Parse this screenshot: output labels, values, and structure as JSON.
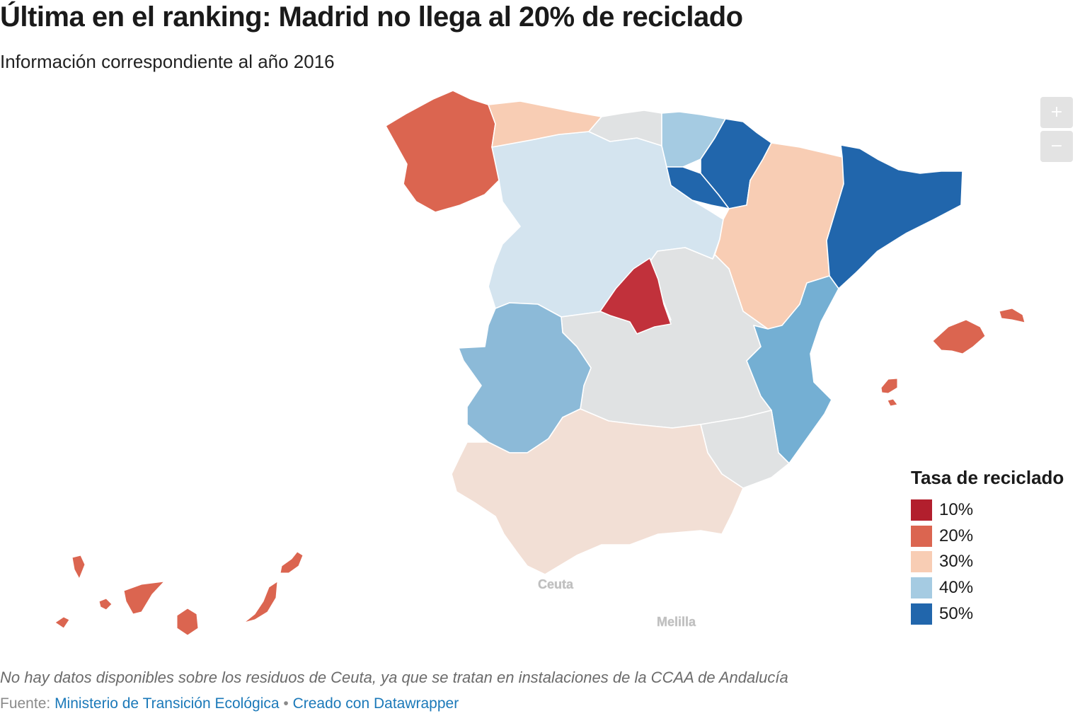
{
  "title": "Última en el ranking: Madrid no llega al 20% de reciclado",
  "subtitle": "Información correspondiente al año 2016",
  "zoom": {
    "in_label": "+",
    "out_label": "−"
  },
  "legend": {
    "title": "Tasa de reciclado",
    "items": [
      {
        "label": "10%",
        "color": "#b21f2d"
      },
      {
        "label": "20%",
        "color": "#db6550"
      },
      {
        "label": "30%",
        "color": "#f8cdb4"
      },
      {
        "label": "40%",
        "color": "#a5cbe2"
      },
      {
        "label": "50%",
        "color": "#2166ac"
      }
    ]
  },
  "map": {
    "no_data_color": "#e0e2e3",
    "regions": [
      {
        "name": "Galicia",
        "color": "#db6550"
      },
      {
        "name": "Asturias",
        "color": "#f8cdb4"
      },
      {
        "name": "Cantabria",
        "color": "#e0e2e3"
      },
      {
        "name": "País Vasco",
        "color": "#a5cbe2"
      },
      {
        "name": "Navarra",
        "color": "#2166ac"
      },
      {
        "name": "La Rioja",
        "color": "#2166ac"
      },
      {
        "name": "Aragón",
        "color": "#f8cdb4"
      },
      {
        "name": "Cataluña",
        "color": "#2166ac"
      },
      {
        "name": "Castilla y León",
        "color": "#d4e4ef"
      },
      {
        "name": "Madrid",
        "color": "#c1313b"
      },
      {
        "name": "Castilla-La Mancha",
        "color": "#e0e2e3"
      },
      {
        "name": "Extremadura",
        "color": "#8cbad8"
      },
      {
        "name": "Comunidad Valenciana",
        "color": "#74afd3"
      },
      {
        "name": "Murcia",
        "color": "#e0e2e3"
      },
      {
        "name": "Andalucía",
        "color": "#f2dfd5"
      },
      {
        "name": "Islas Baleares",
        "color": "#db6550"
      },
      {
        "name": "Canarias",
        "color": "#db6550"
      }
    ],
    "city_labels": [
      "Ceuta",
      "Melilla"
    ]
  },
  "note": "No hay datos disponibles sobre los residuos de Ceuta, ya que se tratan en instalaciones de la CCAA de Andalucía",
  "source": {
    "prefix": "Fuente: ",
    "link_text": "Ministerio de Transición Ecológica",
    "separator": " • ",
    "credit_text": "Creado con Datawrapper"
  }
}
